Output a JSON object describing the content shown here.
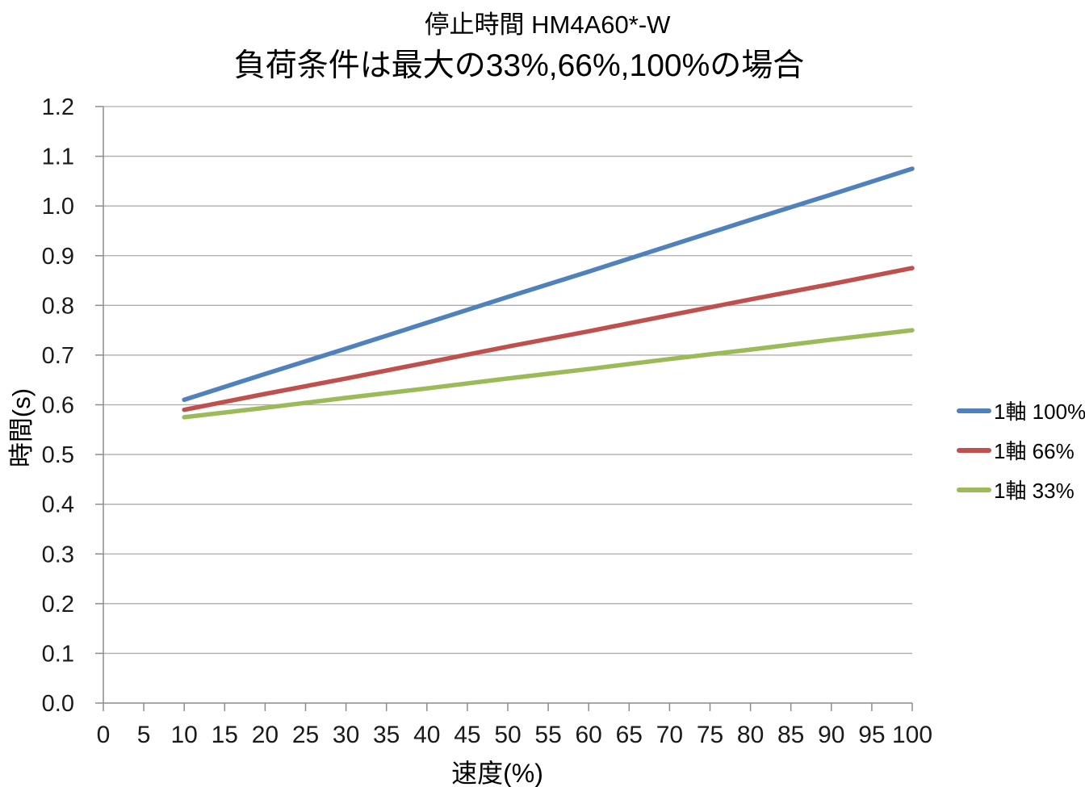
{
  "chart_data": {
    "type": "line",
    "title": "停止時間 HM4A60*-W",
    "subtitle": "負荷条件は最大の33%,66%,100%の場合",
    "xlabel": "速度(%)",
    "ylabel": "時間(s)",
    "xlim": [
      0,
      100
    ],
    "ylim": [
      0.0,
      1.2
    ],
    "x_ticks": [
      0,
      5,
      10,
      15,
      20,
      25,
      30,
      35,
      40,
      45,
      50,
      55,
      60,
      65,
      70,
      75,
      80,
      85,
      90,
      95,
      100
    ],
    "y_ticks": [
      "0.0",
      "0.1",
      "0.2",
      "0.3",
      "0.4",
      "0.5",
      "0.6",
      "0.7",
      "0.8",
      "0.9",
      "1.0",
      "1.1",
      "1.2"
    ],
    "grid": "horizontal",
    "legend_position": "right",
    "x": [
      10,
      20,
      30,
      40,
      50,
      60,
      70,
      80,
      90,
      100
    ],
    "series": [
      {
        "name": "1軸 100%",
        "color": "#4F81BD",
        "values": [
          0.61,
          0.662,
          0.713,
          0.765,
          0.817,
          0.868,
          0.92,
          0.972,
          1.023,
          1.075
        ]
      },
      {
        "name": "1軸 66%",
        "color": "#C0504D",
        "values": [
          0.59,
          0.622,
          0.653,
          0.685,
          0.717,
          0.748,
          0.78,
          0.812,
          0.843,
          0.875
        ]
      },
      {
        "name": "1軸 33%",
        "color": "#9BBB59",
        "values": [
          0.575,
          0.594,
          0.614,
          0.633,
          0.653,
          0.672,
          0.692,
          0.711,
          0.731,
          0.75
        ]
      }
    ],
    "colors": {
      "gridline": "#ADADAD",
      "axis": "#8C8C8C",
      "tick_text": "#1a1a1a"
    }
  }
}
